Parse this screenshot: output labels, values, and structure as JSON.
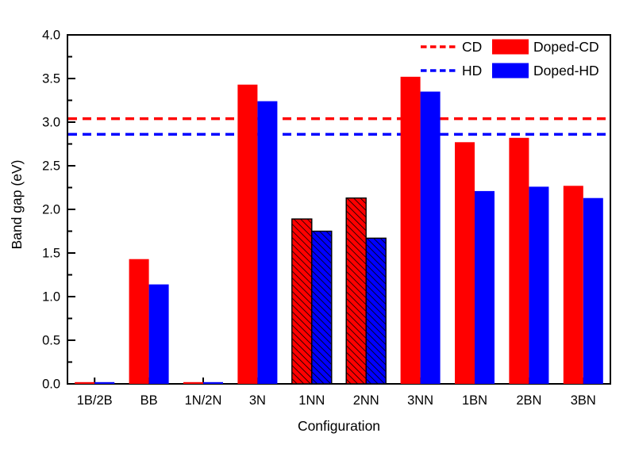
{
  "figure": {
    "background": "#ffffff",
    "axis_color": "#000000"
  },
  "chart_data": {
    "type": "bar",
    "title": "",
    "xlabel": "Configuration",
    "ylabel": "Band gap (eV)",
    "ylim": [
      0,
      4
    ],
    "ytick_step": 0.5,
    "yminor_step": 0.25,
    "grid": false,
    "legend_position": "top-right-inside",
    "categories": [
      "1B/2B",
      "BB",
      "1N/2N",
      "3N",
      "1NN",
      "2NN",
      "3NN",
      "1BN",
      "2BN",
      "3BN"
    ],
    "series": [
      {
        "name": "Doped-CD",
        "color": "#ff0000",
        "values": [
          0.02,
          1.43,
          0.02,
          3.43,
          1.89,
          2.13,
          3.52,
          2.77,
          2.82,
          2.27
        ]
      },
      {
        "name": "Doped-HD",
        "color": "#0000ff",
        "values": [
          0.02,
          1.14,
          0.02,
          3.24,
          1.75,
          1.67,
          3.35,
          2.21,
          2.26,
          2.13
        ]
      }
    ],
    "hatched_categories": [
      "1NN",
      "2NN"
    ],
    "hatch_style": "black-backslash-diagonal",
    "reference_lines": [
      {
        "name": "CD",
        "value": 3.04,
        "color": "#ff0000",
        "style": "dashed"
      },
      {
        "name": "HD",
        "value": 2.86,
        "color": "#0000ff",
        "style": "dashed"
      }
    ]
  }
}
